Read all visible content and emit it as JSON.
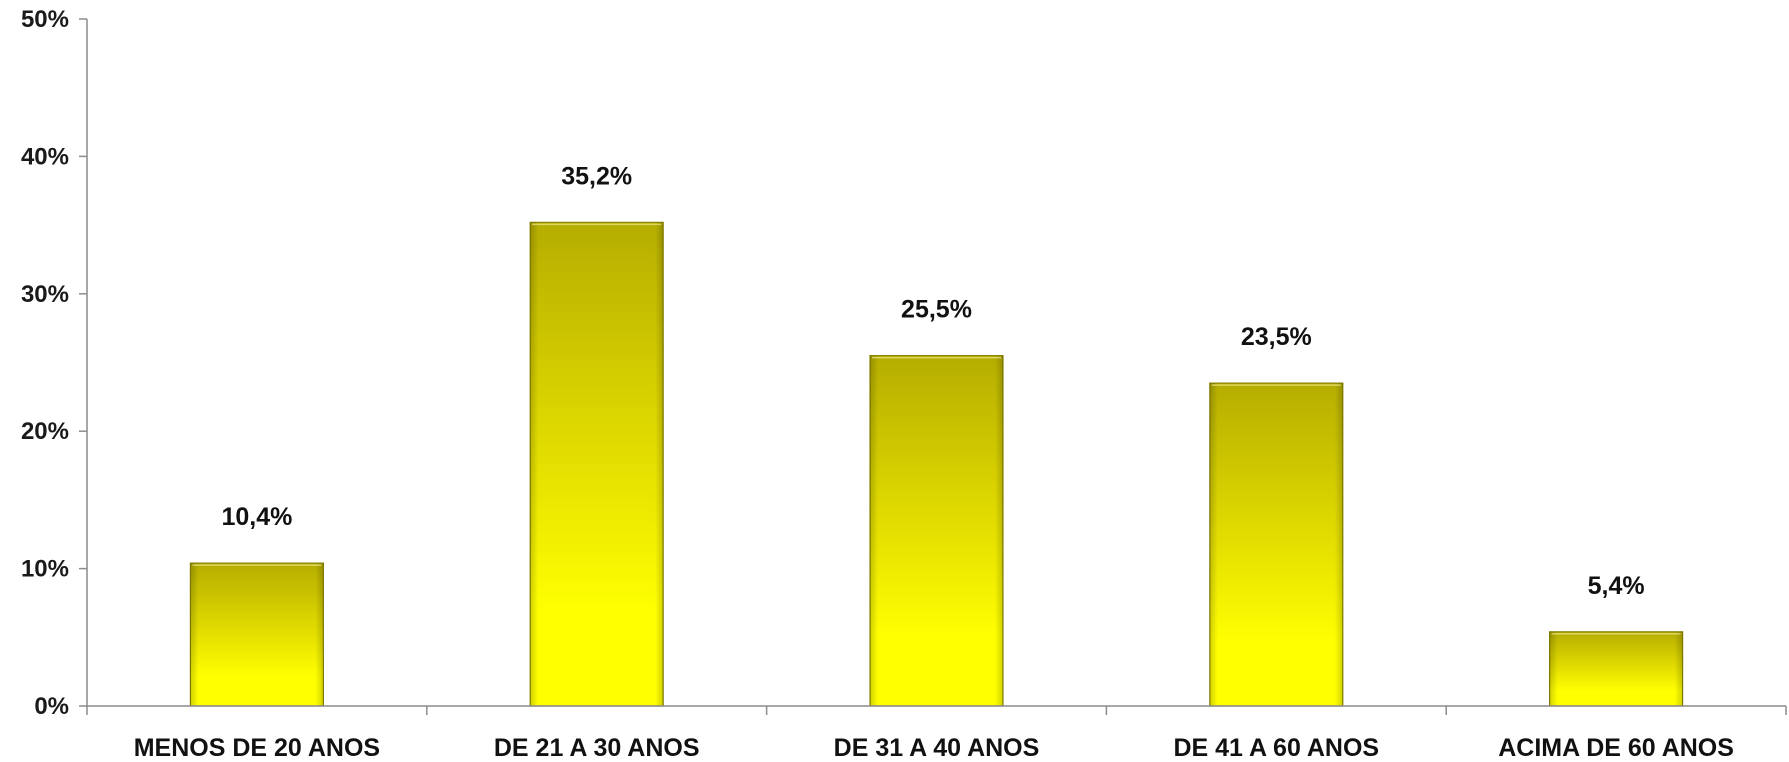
{
  "chart_data": {
    "type": "bar",
    "categories": [
      "MENOS DE 20 ANOS",
      "DE 21 A 30 ANOS",
      "DE 31 A 40 ANOS",
      "DE 41 A 60 ANOS",
      "ACIMA DE 60 ANOS"
    ],
    "values": [
      10.4,
      35.2,
      25.5,
      23.5,
      5.4
    ],
    "data_labels": [
      "10,4%",
      "35,2%",
      "25,5%",
      "23,5%",
      "5,4%"
    ],
    "y_ticks": [
      "0%",
      "10%",
      "20%",
      "30%",
      "40%",
      "50%"
    ],
    "ylim": [
      0,
      50
    ],
    "title": "",
    "xlabel": "",
    "ylabel": "",
    "grid": false,
    "legend": "none",
    "colors": {
      "bar_top": "#b5ad00",
      "bar_mid": "#e0da00",
      "bar_bottom": "#ffff00",
      "bar_edge": "#8a8400",
      "axis": "#8c8c8c",
      "text": "#111111"
    }
  }
}
